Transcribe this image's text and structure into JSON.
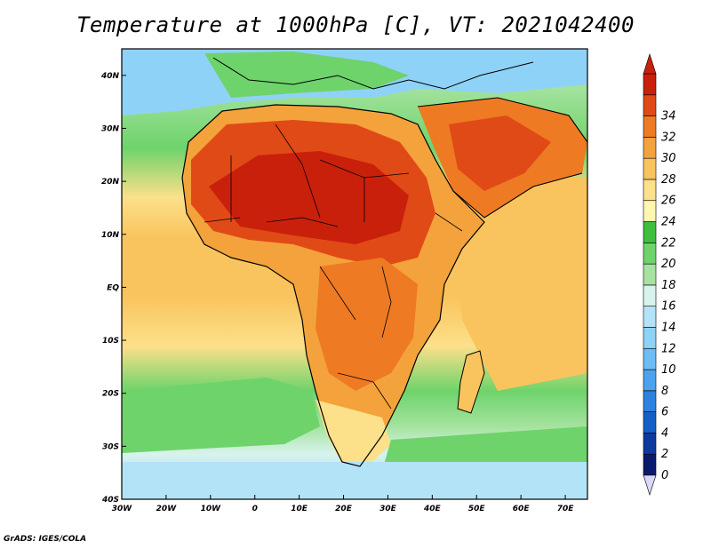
{
  "title": "Temperature at 1000hPa [C], VT: 2021042400",
  "credit": "GrADS: IGES/COLA",
  "map": {
    "lon_ticks": [
      "30W",
      "20W",
      "10W",
      "0",
      "10E",
      "20E",
      "30E",
      "40E",
      "50E",
      "60E",
      "70E"
    ],
    "lat_ticks": [
      "40N",
      "30N",
      "20N",
      "10N",
      "EQ",
      "10S",
      "20S",
      "30S",
      "40S"
    ],
    "lon_range": [
      -30,
      75
    ],
    "lat_range": [
      -40,
      45
    ]
  },
  "colorbar": {
    "labels": [
      "0",
      "2",
      "4",
      "6",
      "8",
      "10",
      "12",
      "14",
      "16",
      "18",
      "20",
      "22",
      "24",
      "26",
      "28",
      "30",
      "32",
      "34"
    ],
    "colors": [
      "#0a1b6e",
      "#0d3aa0",
      "#1560c8",
      "#2b82e0",
      "#4aa3ee",
      "#6cbdf5",
      "#8fd2f7",
      "#b3e3f7",
      "#d8f3ee",
      "#a6e3a0",
      "#6ed36b",
      "#3dbf3d",
      "#fff6b0",
      "#fce08a",
      "#f9c45d",
      "#f4a23b",
      "#ee7a23",
      "#e04a16",
      "#c9200c"
    ]
  },
  "legend_colors": {
    "ocean_cool": "#8fd2f7",
    "land_hot": "#e04a16",
    "coast": "#000000"
  }
}
